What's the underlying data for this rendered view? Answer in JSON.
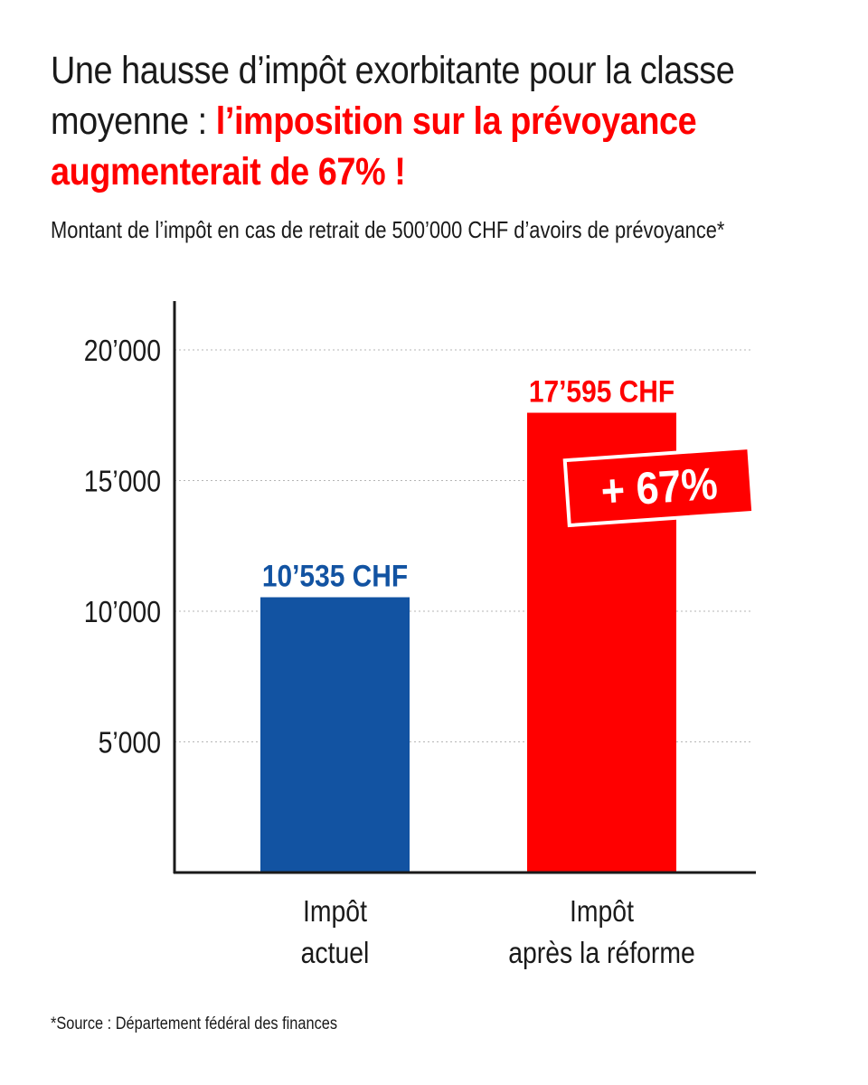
{
  "title": {
    "text": "Une hausse d’impôt exorbitante pour la classe moyenne : ",
    "highlight": "l’imposition sur la prévoyance augmenterait de 67% !"
  },
  "subtitle": "Montant de l’impôt en cas de retrait de 500’000 CHF d’avoirs de prévoyance*",
  "source": "*Source : Département fédéral des finances",
  "colors": {
    "current": "#1253a2",
    "reform": "#ff0000",
    "text": "#1a1a1a",
    "grid": "#b5b5b5"
  },
  "chart_data": {
    "type": "bar",
    "categories": [
      [
        "Impôt",
        "actuel"
      ],
      [
        "Impôt",
        "après la réforme"
      ]
    ],
    "values": [
      10535,
      17595
    ],
    "value_labels": [
      "10’535 CHF",
      "17’595 CHF"
    ],
    "ylim": [
      0,
      22000
    ],
    "yticks": [
      5000,
      10000,
      15000,
      20000
    ],
    "ytick_labels": [
      "5’000",
      "10’000",
      "15’000",
      "20’000"
    ],
    "grid": true,
    "annotation": "+ 67%"
  }
}
